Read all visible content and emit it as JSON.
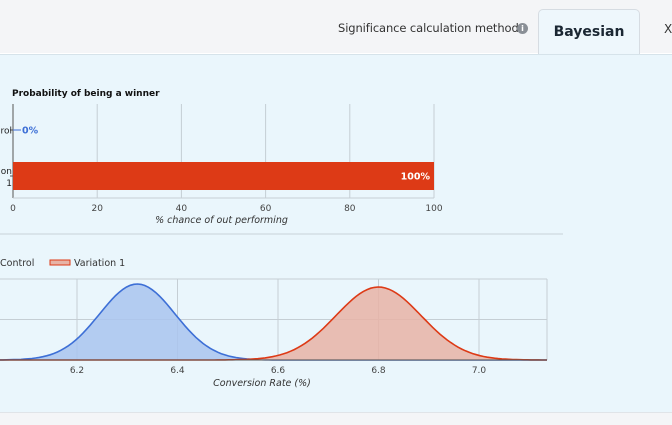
{
  "header": {
    "method_label": "Significance calculation method:",
    "info_icon": "info-icon",
    "active_tab": "Bayesian",
    "next_tab": "X"
  },
  "colors": {
    "control": "#3d6fd6",
    "control_fill": "#a9c4ee",
    "variation": "#dd3a16",
    "variation_fill": "#e7b3a6",
    "panel_bg": "#eaf6fc"
  },
  "chart_data": [
    {
      "type": "bar",
      "orientation": "horizontal",
      "title": "Probability of being a winner",
      "xlabel": "% chance of out performing",
      "xlim": [
        0,
        100
      ],
      "xticks": [
        0,
        20,
        40,
        60,
        80,
        100
      ],
      "categories": [
        "rol",
        "on 1"
      ],
      "values": [
        0,
        100
      ],
      "data_labels": [
        "0%",
        "100%"
      ],
      "grid": true
    },
    {
      "type": "area",
      "xlabel": "Conversion Rate (%)",
      "xticks": [
        6.2,
        6.4,
        6.6,
        6.8,
        7.0
      ],
      "legend": [
        "Control",
        "Variation 1"
      ],
      "legend_position": "top-left",
      "series": [
        {
          "name": "Control",
          "mean": 6.32,
          "sd": 0.075,
          "peak": 1.0
        },
        {
          "name": "Variation 1",
          "mean": 6.8,
          "sd": 0.085,
          "peak": 0.96
        }
      ],
      "grid": true
    }
  ]
}
